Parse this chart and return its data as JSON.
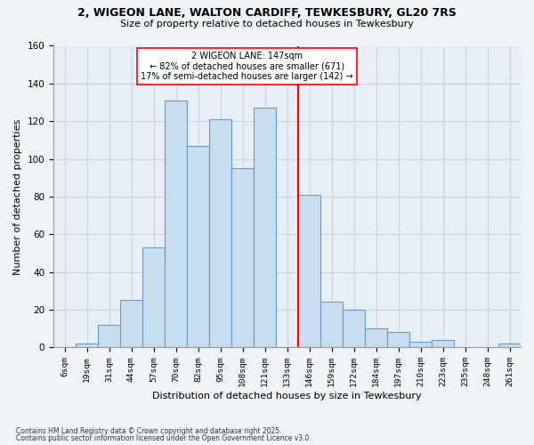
{
  "title": "2, WIGEON LANE, WALTON CARDIFF, TEWKESBURY, GL20 7RS",
  "subtitle": "Size of property relative to detached houses in Tewkesbury",
  "xlabel": "Distribution of detached houses by size in Tewkesbury",
  "ylabel": "Number of detached properties",
  "bar_labels": [
    "6sqm",
    "19sqm",
    "31sqm",
    "44sqm",
    "57sqm",
    "70sqm",
    "82sqm",
    "95sqm",
    "108sqm",
    "121sqm",
    "133sqm",
    "146sqm",
    "159sqm",
    "172sqm",
    "184sqm",
    "197sqm",
    "210sqm",
    "223sqm",
    "235sqm",
    "248sqm",
    "261sqm"
  ],
  "bar_values": [
    0,
    2,
    12,
    25,
    53,
    131,
    107,
    121,
    95,
    127,
    0,
    81,
    24,
    20,
    10,
    8,
    3,
    4,
    0,
    0,
    2
  ],
  "bar_color": "#c8ddf0",
  "bar_edgecolor": "#6699cc",
  "marker_line_color": "red",
  "annotation_line1": "2 WIGEON LANE: 147sqm",
  "annotation_line2": "← 82% of detached houses are smaller (671)",
  "annotation_line3": "17% of semi-detached houses are larger (142) →",
  "annotation_box_color": "red",
  "ylim": [
    0,
    160
  ],
  "yticks": [
    0,
    20,
    40,
    60,
    80,
    100,
    120,
    140,
    160
  ],
  "footnote1": "Contains HM Land Registry data © Crown copyright and database right 2025.",
  "footnote2": "Contains public sector information licensed under the Open Government Licence v3.0.",
  "bg_color": "#f0f4f8",
  "plot_bg_color": "#e8eff7",
  "grid_color": "#c8d4e0"
}
